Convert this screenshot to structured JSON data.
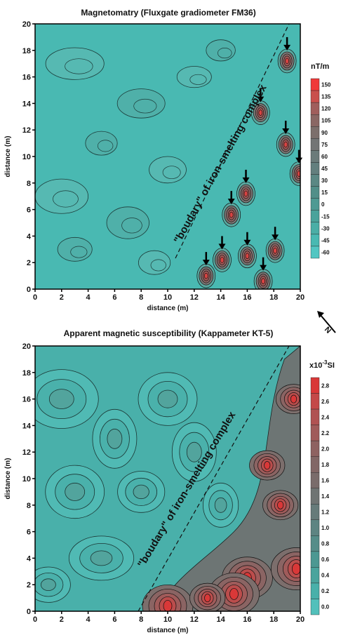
{
  "chart_data": [
    {
      "type": "heatmap",
      "title": "Magnetomatry (Fluxgate gradiometer FM36)",
      "xlabel": "distance (m)",
      "ylabel": "distance (m)",
      "xlim": [
        0,
        20
      ],
      "ylim": [
        0,
        20
      ],
      "x_ticks": [
        "0",
        "2",
        "4",
        "6",
        "8",
        "10",
        "12",
        "14",
        "16",
        "18",
        "20"
      ],
      "y_ticks": [
        "0",
        "2",
        "4",
        "6",
        "8",
        "10",
        "12",
        "14",
        "16",
        "18",
        "20"
      ],
      "annotation": "\"boudary\" of iron-smelting complex",
      "colorbar": {
        "unit": "nT/m",
        "labels": [
          "150",
          "135",
          "120",
          "105",
          "90",
          "75",
          "60",
          "45",
          "30",
          "15",
          "0",
          "-15",
          "-30",
          "-45",
          "-60"
        ],
        "colors": [
          "#f03a3a",
          "#c9504d",
          "#a05e5c",
          "#8a6764",
          "#7c6f6c",
          "#737575",
          "#6b7b7a",
          "#637f7e",
          "#5b8884",
          "#528f89",
          "#4f9a93",
          "#4aa39b",
          "#4aaea6",
          "#49b9b2",
          "#52c6c2"
        ]
      },
      "anomalies": [
        {
          "x": 19.0,
          "y": 17.2
        },
        {
          "x": 17.0,
          "y": 13.3
        },
        {
          "x": 18.9,
          "y": 10.9
        },
        {
          "x": 19.9,
          "y": 8.7
        },
        {
          "x": 15.9,
          "y": 7.2
        },
        {
          "x": 14.8,
          "y": 5.6
        },
        {
          "x": 12.9,
          "y": 1.0
        },
        {
          "x": 14.1,
          "y": 2.2
        },
        {
          "x": 16.0,
          "y": 2.5
        },
        {
          "x": 18.1,
          "y": 2.9
        },
        {
          "x": 17.2,
          "y": 0.6
        }
      ]
    },
    {
      "type": "heatmap",
      "title": "Apparent magnetic susceptibility (Kappameter KT-5)",
      "xlabel": "distance (m)",
      "ylabel": "distance (m)",
      "xlim": [
        0,
        20
      ],
      "ylim": [
        0,
        20
      ],
      "x_ticks": [
        "0",
        "2",
        "4",
        "6",
        "8",
        "10",
        "12",
        "14",
        "16",
        "18",
        "20"
      ],
      "y_ticks": [
        "0",
        "2",
        "4",
        "6",
        "8",
        "10",
        "12",
        "14",
        "16",
        "18",
        "20"
      ],
      "annotation": "\"boudary\" of iron-smelting complex",
      "colorbar": {
        "unit": "x10",
        "unit_exp": "-3",
        "unit_suffix": "SI",
        "labels": [
          "2.8",
          "2.6",
          "2.4",
          "2.2",
          "2.0",
          "1.8",
          "1.6",
          "1.4",
          "1.2",
          "1.0",
          "0.8",
          "0.6",
          "0.4",
          "0.2",
          "0.0"
        ],
        "colors": [
          "#d93838",
          "#c44848",
          "#b05252",
          "#a05b5a",
          "#8e6261",
          "#826766",
          "#7a6c6b",
          "#6f7473",
          "#667b7a",
          "#5d8482",
          "#558d89",
          "#4c9892",
          "#4aa49d",
          "#49b0aa",
          "#52c0bb"
        ]
      },
      "hotspots": [
        {
          "x": 16.0,
          "y": 2.5
        },
        {
          "x": 15.0,
          "y": 1.3
        },
        {
          "x": 19.7,
          "y": 3.2
        },
        {
          "x": 10.0,
          "y": 0.4
        },
        {
          "x": 13.0,
          "y": 1.0
        },
        {
          "x": 19.5,
          "y": 16.0
        },
        {
          "x": 17.5,
          "y": 11.0
        },
        {
          "x": 18.5,
          "y": 8.0
        }
      ]
    }
  ],
  "north_label": "N"
}
